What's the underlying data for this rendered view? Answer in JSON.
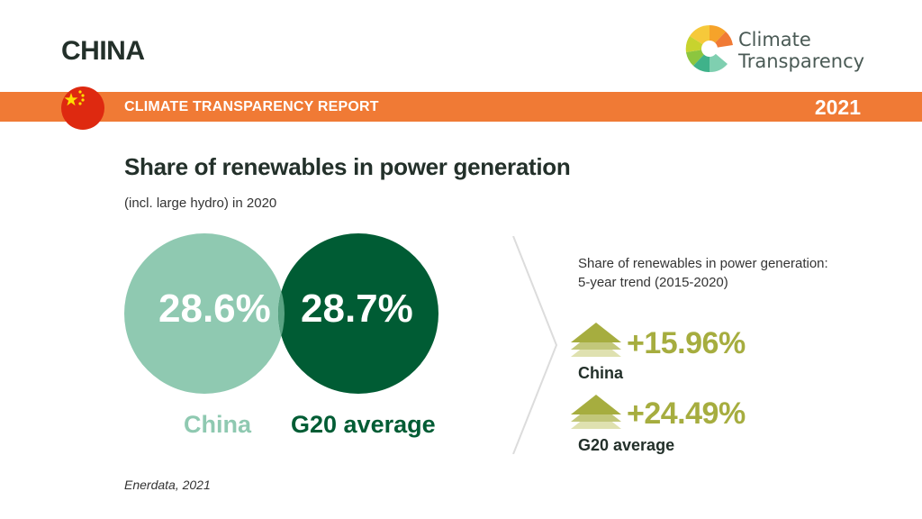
{
  "header": {
    "country": "CHINA",
    "logo_line1": "Climate",
    "logo_line2": "Transparency",
    "report_title": "CLIMATE TRANSPARENCY REPORT",
    "year": "2021"
  },
  "colors": {
    "band": "#f07a35",
    "china": "#8fc9b1",
    "g20": "#005c34",
    "trend": "#a6ad3f"
  },
  "chart": {
    "title": "Share of renewables in power generation",
    "subtitle": "(incl. large hydro) in 2020",
    "china_value": "28.6%",
    "g20_value": "28.7%",
    "china_label": "China",
    "g20_label": "G20 average"
  },
  "trend": {
    "title_line1": "Share of renewables in power generation:",
    "title_line2": "5-year trend (2015-2020)",
    "items": [
      {
        "value": "+15.96%",
        "label": "China"
      },
      {
        "value": "+24.49%",
        "label": "G20 average"
      }
    ]
  },
  "source": "Enerdata, 2021",
  "chart_data": {
    "type": "venn",
    "title": "Share of renewables in power generation",
    "subtitle": "(incl. large hydro) in 2020",
    "unit": "%",
    "series": [
      {
        "name": "China",
        "value": 28.6,
        "trend_2015_2020": 15.96
      },
      {
        "name": "G20 average",
        "value": 28.7,
        "trend_2015_2020": 24.49
      }
    ]
  }
}
